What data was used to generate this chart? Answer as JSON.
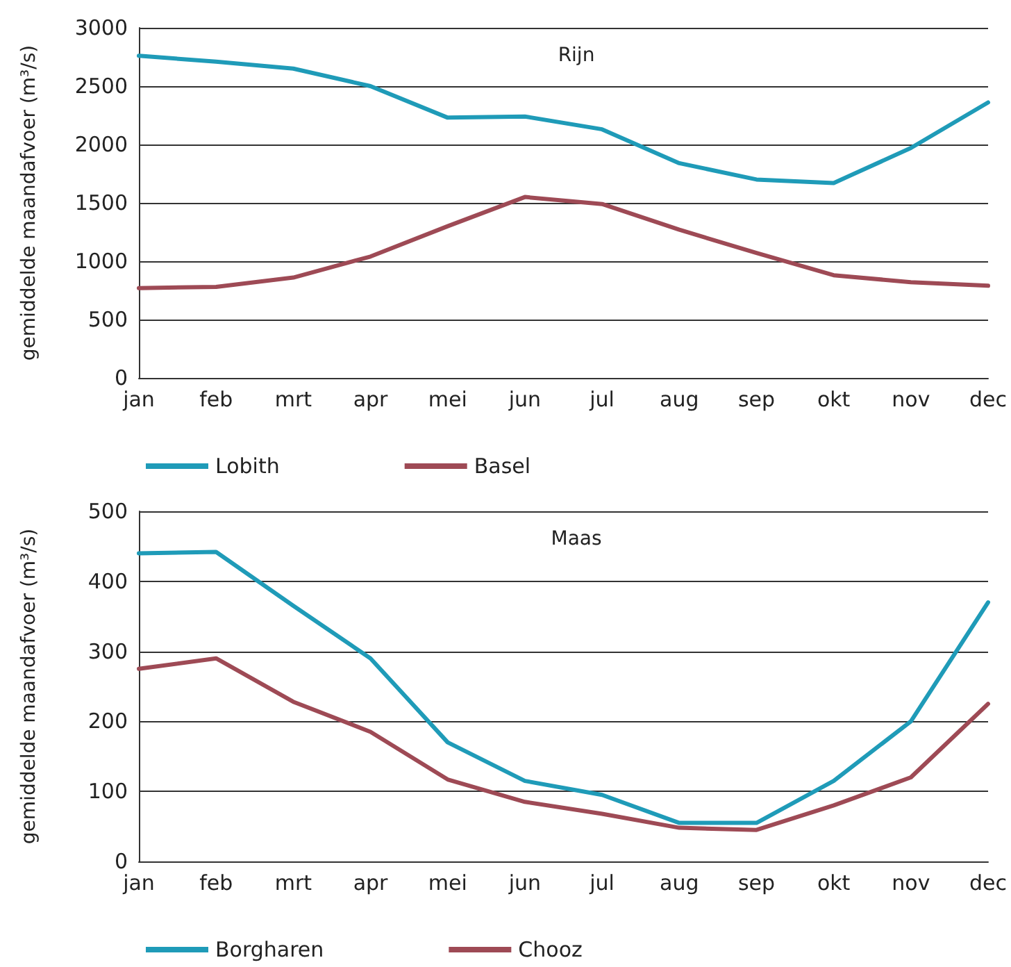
{
  "chart_data": [
    {
      "type": "line",
      "title": "Rijn",
      "ylabel": "gemiddelde maandafvoer (m³/s)",
      "categories": [
        "jan",
        "feb",
        "mrt",
        "apr",
        "mei",
        "jun",
        "jul",
        "aug",
        "sep",
        "okt",
        "nov",
        "dec"
      ],
      "series": [
        {
          "name": "Lobith",
          "color": "#1f9bb8",
          "values": [
            2760,
            2710,
            2650,
            2500,
            2230,
            2240,
            2130,
            1840,
            1700,
            1670,
            1970,
            2360
          ]
        },
        {
          "name": "Basel",
          "color": "#9e4a55",
          "values": [
            770,
            780,
            860,
            1040,
            1300,
            1550,
            1490,
            1270,
            1070,
            880,
            820,
            790
          ]
        }
      ],
      "ylim": [
        0,
        3000
      ],
      "yticks": [
        0,
        500,
        1000,
        1500,
        2000,
        2500,
        3000
      ],
      "grid": "y",
      "legend": "bottom",
      "marker": "none",
      "line_style": "solid"
    },
    {
      "type": "line",
      "title": "Maas",
      "ylabel": "gemiddelde maandafvoer (m³/s)",
      "categories": [
        "jan",
        "feb",
        "mrt",
        "apr",
        "mei",
        "jun",
        "jul",
        "aug",
        "sep",
        "okt",
        "nov",
        "dec"
      ],
      "series": [
        {
          "name": "Borgharen",
          "color": "#1f9bb8",
          "values": [
            440,
            442,
            365,
            290,
            170,
            115,
            95,
            55,
            55,
            115,
            200,
            370
          ]
        },
        {
          "name": "Chooz",
          "color": "#9e4a55",
          "values": [
            275,
            290,
            228,
            185,
            117,
            85,
            68,
            48,
            45,
            80,
            120,
            225
          ]
        }
      ],
      "ylim": [
        0,
        500
      ],
      "yticks": [
        0,
        100,
        200,
        300,
        400,
        500
      ],
      "grid": "y",
      "legend": "bottom",
      "marker": "none",
      "line_style": "solid"
    }
  ]
}
